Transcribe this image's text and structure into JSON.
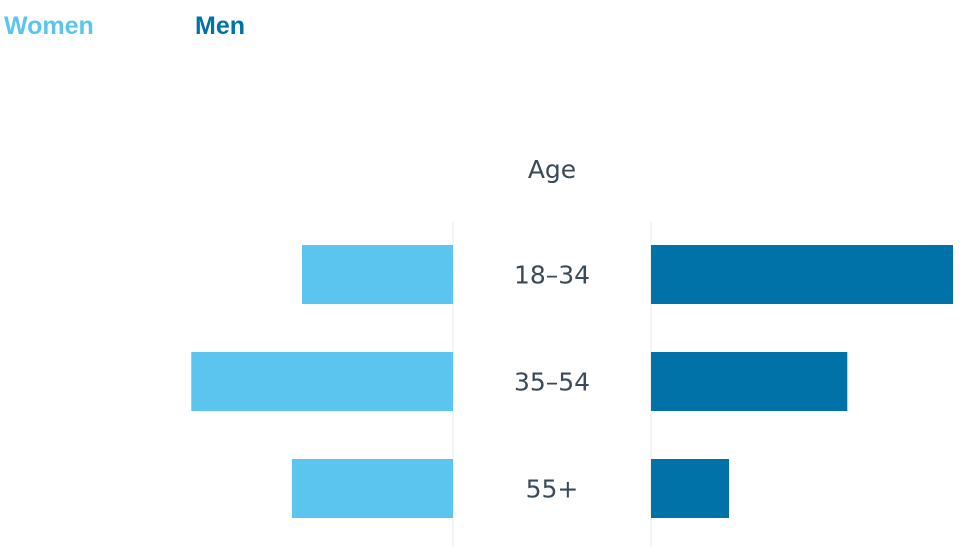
{
  "chart_data": {
    "type": "bar",
    "orientation": "horizontal-butterfly",
    "title": "",
    "category_axis_label": "Age",
    "categories": [
      "18–34",
      "35–54",
      "55+"
    ],
    "series": [
      {
        "name": "Women",
        "side": "left",
        "color": "#5bc5ef",
        "values": [
          6.0,
          10.4,
          6.4
        ]
      },
      {
        "name": "Men",
        "side": "right",
        "color": "#0072a8",
        "values": [
          12.0,
          7.8,
          3.1
        ]
      }
    ],
    "legend_position": "top-left",
    "value_axis_shown": false,
    "grid": false
  }
}
